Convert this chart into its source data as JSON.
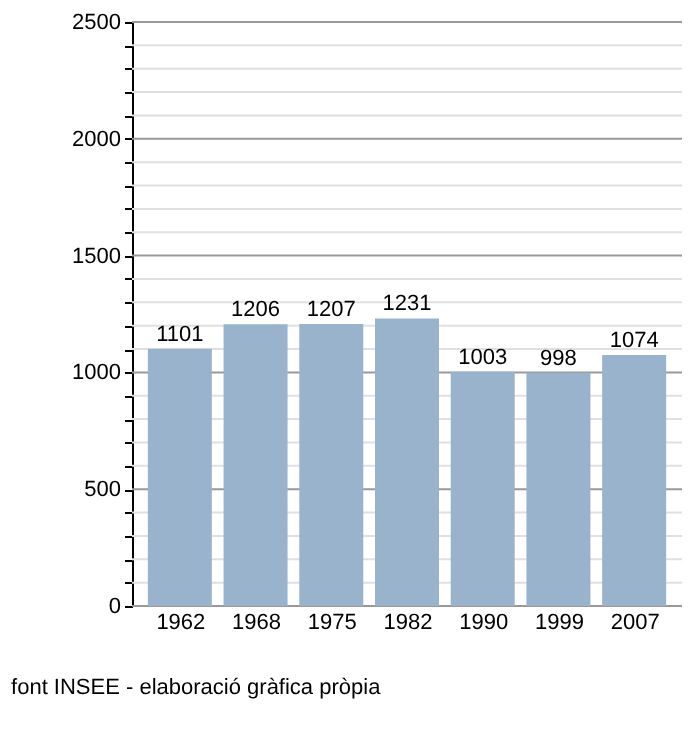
{
  "chart_data": {
    "type": "bar",
    "categories": [
      "1962",
      "1968",
      "1975",
      "1982",
      "1990",
      "1999",
      "2007"
    ],
    "values": [
      1101,
      1206,
      1207,
      1231,
      1003,
      998,
      1074
    ],
    "color": "#9ab3cc",
    "ylim": [
      0,
      2500
    ],
    "yticks": [
      0,
      {
        "value": 100,
        "label": null
      },
      {
        "value": 200,
        "label": null
      },
      {
        "value": 300,
        "label": null
      },
      {
        "value": 400,
        "label": null
      },
      500,
      {
        "value": 600,
        "label": null
      },
      {
        "value": 700,
        "label": null
      },
      {
        "value": 800,
        "label": null
      },
      {
        "value": 900,
        "label": null
      },
      1000,
      {
        "value": 1100,
        "label": null
      },
      {
        "value": 1200,
        "label": null
      },
      {
        "value": 1300,
        "label": null
      },
      {
        "value": 1400,
        "label": null
      },
      1500,
      {
        "value": 1600,
        "label": null
      },
      {
        "value": 1700,
        "label": null
      },
      {
        "value": 1800,
        "label": null
      },
      {
        "value": 1900,
        "label": null
      },
      2000,
      {
        "value": 2100,
        "label": null
      },
      {
        "value": 2200,
        "label": null
      },
      {
        "value": 2300,
        "label": null
      },
      {
        "value": 2400,
        "label": null
      },
      2500
    ],
    "grid": true,
    "data_labels": true,
    "annotations": [
      "font INSEE - elaboració gràfica pròpia"
    ]
  }
}
